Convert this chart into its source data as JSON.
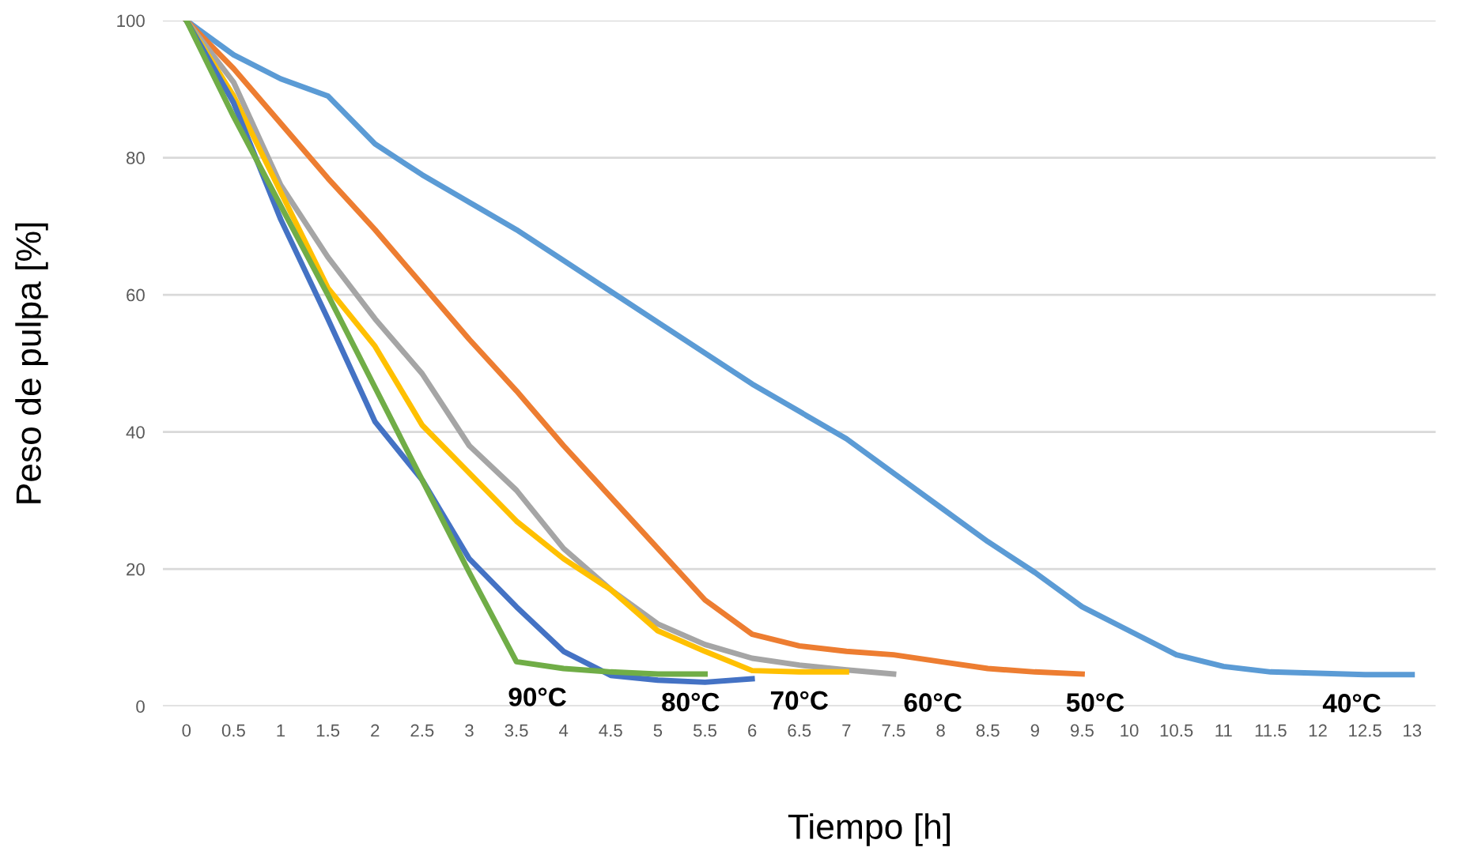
{
  "chart_data": {
    "type": "line",
    "xlabel": "Tiempo [h]",
    "ylabel": "Peso de pulpa [%]",
    "categories": [
      "0",
      "0.5",
      "1",
      "1.5",
      "2",
      "2.5",
      "3",
      "3.5",
      "4",
      "4.5",
      "5",
      "5.5",
      "6",
      "6.5",
      "7",
      "7.5",
      "8",
      "8.5",
      "9",
      "9.5",
      "10",
      "10.5",
      "11",
      "11.5",
      "12",
      "12.5",
      "13"
    ],
    "series": [
      {
        "name": "40°C",
        "color": "#5b9bd5",
        "values": [
          100,
          95,
          91.5,
          89,
          82,
          77.5,
          73.5,
          69.5,
          65,
          60.5,
          56,
          51.5,
          47,
          43,
          39,
          34,
          29,
          24,
          19.5,
          14.5,
          11,
          7.5,
          5.8,
          5,
          4.8,
          4.6,
          4.6
        ]
      },
      {
        "name": "50°C",
        "color": "#ed7d31",
        "values": [
          100,
          93,
          85,
          77,
          69.5,
          61.5,
          53.5,
          46,
          38,
          30.5,
          23,
          15.5,
          10.5,
          8.8,
          8,
          7.5,
          6.5,
          5.5,
          5,
          4.7,
          null,
          null,
          null,
          null,
          null,
          null,
          null
        ]
      },
      {
        "name": "60°C",
        "color": "#a5a5a5",
        "values": [
          100,
          91,
          76,
          65.5,
          56.5,
          48.5,
          38,
          31.5,
          23,
          17,
          12,
          9,
          7,
          6,
          5.3,
          4.7,
          null,
          null,
          null,
          null,
          null,
          null,
          null,
          null,
          null,
          null,
          null
        ]
      },
      {
        "name": "70°C",
        "color": "#ffc000",
        "values": [
          100,
          89,
          75,
          61,
          52.5,
          41,
          34,
          27,
          21.5,
          17,
          11,
          8,
          5.2,
          5,
          5,
          null,
          null,
          null,
          null,
          null,
          null,
          null,
          null,
          null,
          null,
          null,
          null
        ]
      },
      {
        "name": "80°C",
        "color": "#4472c4",
        "values": [
          100,
          88,
          71,
          56.5,
          41.5,
          33,
          21.5,
          14.5,
          8,
          4.5,
          3.8,
          3.5,
          4,
          null,
          null,
          null,
          null,
          null,
          null,
          null,
          null,
          null,
          null,
          null,
          null,
          null,
          null
        ]
      },
      {
        "name": "90°C",
        "color": "#70ad47",
        "values": [
          100,
          86,
          73,
          60,
          46.5,
          33,
          19.5,
          6.5,
          5.5,
          5,
          4.7,
          4.7,
          null,
          null,
          null,
          null,
          null,
          null,
          null,
          null,
          null,
          null,
          null,
          null,
          null,
          null,
          null
        ]
      }
    ],
    "ylim": [
      0,
      100
    ],
    "yticks": [
      0,
      20,
      40,
      60,
      80,
      100
    ],
    "grid": "y",
    "legend": false,
    "marker": "none",
    "line_style": "solid"
  }
}
